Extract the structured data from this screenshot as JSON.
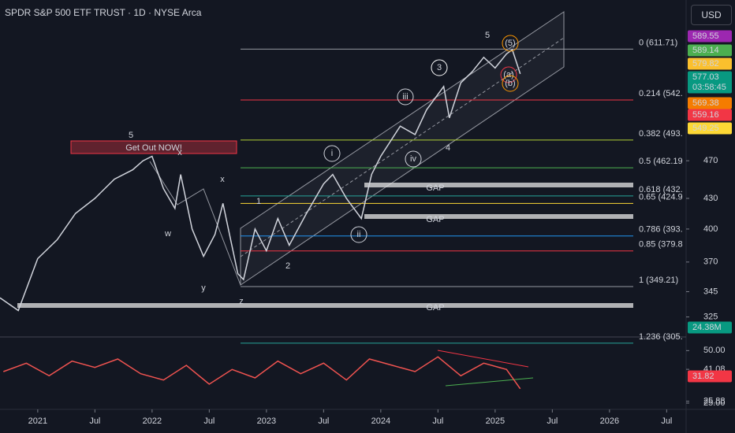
{
  "header": {
    "title": "SPDR S&P 500 ETF TRUST · 1D · NYSE Arca",
    "currency": "USD"
  },
  "chart_data": [
    {
      "type": "line",
      "color": "#d1d4dc",
      "log_scale": true,
      "x": [
        2020.67,
        2020.83,
        2021.0,
        2021.17,
        2021.33,
        2021.5,
        2021.67,
        2021.83,
        2021.92,
        2022.0,
        2022.1,
        2022.2,
        2022.25,
        2022.35,
        2022.45,
        2022.55,
        2022.62,
        2022.75,
        2022.8,
        2022.9,
        2023.0,
        2023.1,
        2023.2,
        2023.35,
        2023.5,
        2023.58,
        2023.7,
        2023.83,
        2023.92,
        2024.0,
        2024.17,
        2024.3,
        2024.4,
        2024.55,
        2024.6,
        2024.7,
        2024.8,
        2024.9,
        2025.0,
        2025.1,
        2025.15,
        2025.22
      ],
      "values": [
        340,
        330,
        373,
        390,
        415,
        430,
        450,
        460,
        470,
        475,
        440,
        420,
        455,
        400,
        375,
        395,
        425,
        360,
        355,
        400,
        380,
        410,
        385,
        415,
        445,
        455,
        430,
        410,
        455,
        475,
        510,
        500,
        530,
        560,
        520,
        565,
        580,
        600,
        585,
        605,
        611,
        577
      ],
      "xlim": [
        2020.67,
        2026.67
      ],
      "ylim": [
        310,
        687
      ],
      "xticks": [
        2021,
        {
          "value": 2021.5,
          "label": "Jul"
        },
        2022,
        {
          "value": 2022.5,
          "label": "Jul"
        },
        2023,
        {
          "value": 2023.5,
          "label": "Jul"
        },
        2024,
        {
          "value": 2024.5,
          "label": "Jul"
        },
        2025,
        {
          "value": 2025.5,
          "label": "Jul"
        },
        2026,
        {
          "value": 2026.5,
          "label": "Jul"
        }
      ],
      "yticks": [
        470,
        430,
        400,
        370,
        345,
        325
      ],
      "price_tags": [
        {
          "label": "589.55",
          "color": "#9c27b0"
        },
        {
          "label": "589.14",
          "color": "#4caf50"
        },
        {
          "label": "579.82",
          "color": "#fbc02d"
        },
        {
          "label": "577.03",
          "countdown": "03:58:45",
          "color": "#089981"
        },
        {
          "label": "569.38",
          "color": "#f57c00"
        },
        {
          "label": "559.16",
          "color": "#f23645"
        },
        {
          "label": "549.25",
          "color": "#fdd835"
        },
        {
          "label": "24.38M",
          "color": "#089981"
        }
      ],
      "fib_levels": [
        {
          "label": "0 (611.71)",
          "value": 611.71,
          "color": "#9598a1"
        },
        {
          "label": "0.214 (542.",
          "value": 542.5,
          "color": "#f23645"
        },
        {
          "label": "0.382 (493.",
          "value": 493.5,
          "color": "#b2d235"
        },
        {
          "label": "0.5 (462.19",
          "value": 462.19,
          "color": "#4caf50"
        },
        {
          "label": "0.618 (432.",
          "value": 432.5,
          "color": "#26a69a"
        },
        {
          "label": "0.65 (424.9",
          "value": 424.9,
          "color": "#fdd835"
        },
        {
          "label": "0.786 (393.",
          "value": 393.5,
          "color": "#2196f3"
        },
        {
          "label": "0.85 (379.8",
          "value": 379.8,
          "color": "#f23645"
        },
        {
          "label": "1 (349.21)",
          "value": 349.21,
          "color": "#9598a1"
        },
        {
          "label": "1.236 (305.",
          "value": 305.5,
          "color": "#26a69a"
        }
      ],
      "labels": [
        "5",
        "3",
        "4",
        "1",
        "2",
        "i",
        "ii",
        "iii",
        "iv",
        "x",
        "x",
        "w",
        "y",
        "z",
        "Get Out NOW!",
        "5",
        "(5)",
        "(a)",
        "(b)",
        "GAP",
        "GAP",
        "GAP"
      ]
    },
    {
      "type": "line",
      "color": "#ef5350",
      "x": [
        2020.7,
        2020.9,
        2021.1,
        2021.3,
        2021.5,
        2021.7,
        2021.9,
        2022.1,
        2022.3,
        2022.5,
        2022.7,
        2022.9,
        2023.1,
        2023.3,
        2023.5,
        2023.7,
        2023.9,
        2024.1,
        2024.3,
        2024.5,
        2024.7,
        2024.9,
        2025.1,
        2025.22
      ],
      "values": [
        40,
        44,
        38,
        45,
        42,
        46,
        39,
        36,
        43,
        34,
        41,
        37,
        45,
        39,
        44,
        36,
        46,
        43,
        40,
        47,
        38,
        44,
        41,
        31.82
      ],
      "xlim": [
        2020.67,
        2026.67
      ],
      "ylim": [
        22,
        55
      ],
      "yticks": [
        {
          "value": 50,
          "label": "50.00"
        },
        {
          "value": 41.08,
          "label": "41.08"
        },
        {
          "value": 25.88,
          "label": "25.88"
        },
        {
          "value": 25,
          "label": "25.00"
        }
      ],
      "price_tags": [
        {
          "label": "31.82",
          "color": "#f23645"
        }
      ]
    }
  ]
}
